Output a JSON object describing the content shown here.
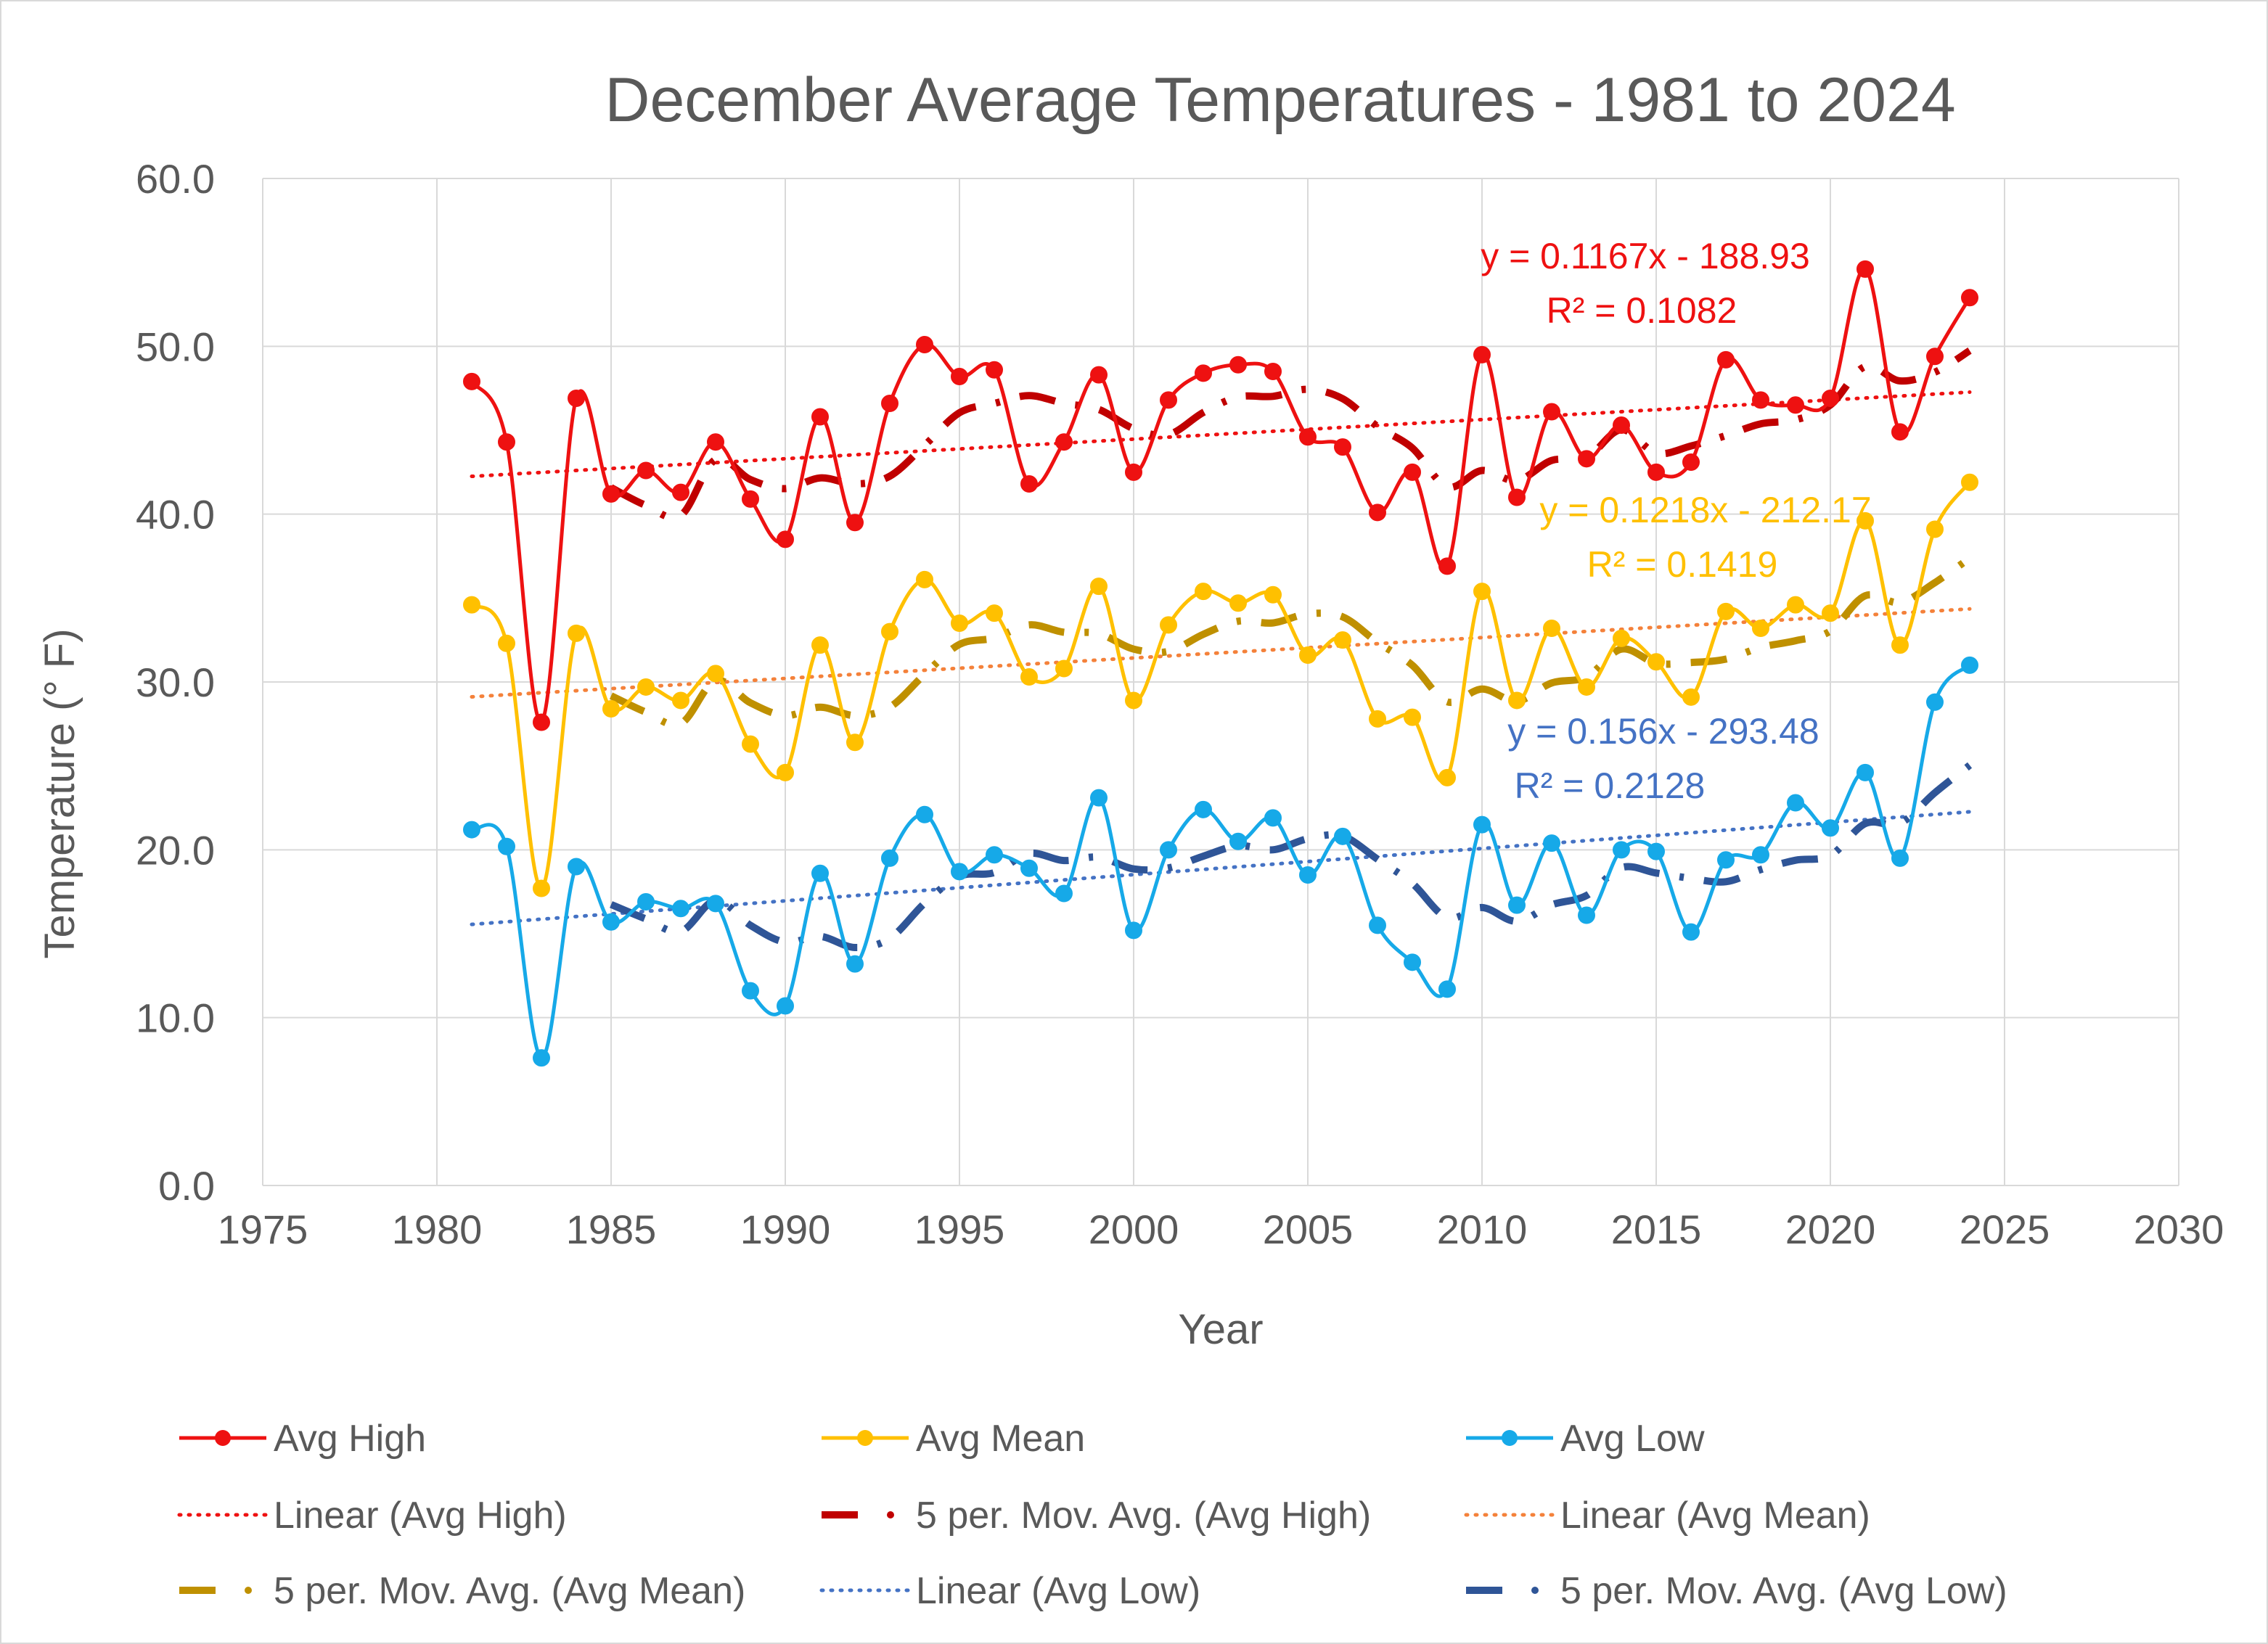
{
  "chart_data": {
    "type": "scatter",
    "title": "December Average Temperatures - 1981 to 2024",
    "xlabel": "Year",
    "ylabel": "Temperature (° F)",
    "xlim": [
      1975,
      2030
    ],
    "ylim": [
      0,
      60
    ],
    "x_ticks": [
      "1975",
      "1980",
      "1985",
      "1990",
      "1995",
      "2000",
      "2005",
      "2010",
      "2015",
      "2020",
      "2025",
      "2030"
    ],
    "y_ticks": [
      "0.0",
      "10.0",
      "20.0",
      "30.0",
      "40.0",
      "50.0",
      "60.0"
    ],
    "grid": true,
    "legend_position": "bottom",
    "x": [
      1981,
      1982,
      1983,
      1984,
      1985,
      1986,
      1987,
      1988,
      1989,
      1990,
      1991,
      1992,
      1993,
      1994,
      1995,
      1996,
      1997,
      1998,
      1999,
      2000,
      2001,
      2002,
      2003,
      2004,
      2005,
      2006,
      2007,
      2008,
      2009,
      2010,
      2011,
      2012,
      2013,
      2014,
      2015,
      2016,
      2017,
      2018,
      2019,
      2020,
      2021,
      2022,
      2023,
      2024
    ],
    "series": [
      {
        "name": "Avg High",
        "color": "#ee1111",
        "values": [
          47.9,
          44.3,
          27.6,
          46.9,
          41.2,
          42.6,
          41.3,
          44.3,
          40.9,
          38.5,
          45.8,
          39.5,
          46.6,
          50.1,
          48.2,
          48.6,
          41.8,
          44.3,
          48.3,
          42.5,
          46.8,
          48.4,
          48.9,
          48.5,
          44.6,
          44.0,
          40.1,
          42.5,
          36.9,
          49.5,
          41.0,
          46.1,
          43.3,
          45.3,
          42.5,
          43.1,
          49.2,
          46.8,
          46.5,
          46.9,
          54.6,
          44.9,
          49.4,
          52.9
        ]
      },
      {
        "name": "Avg Mean",
        "color": "#ffc000",
        "values": [
          34.6,
          32.3,
          17.7,
          32.9,
          28.4,
          29.7,
          28.9,
          30.5,
          26.3,
          24.6,
          32.2,
          26.4,
          33.0,
          36.1,
          33.5,
          34.1,
          30.3,
          30.8,
          35.7,
          28.9,
          33.4,
          35.4,
          34.7,
          35.2,
          31.6,
          32.5,
          27.8,
          27.9,
          24.3,
          35.4,
          28.9,
          33.2,
          29.7,
          32.6,
          31.2,
          29.1,
          34.2,
          33.2,
          34.6,
          34.1,
          39.6,
          32.2,
          39.1,
          41.9
        ]
      },
      {
        "name": "Avg Low",
        "color": "#16a9e8",
        "values": [
          21.2,
          20.2,
          7.6,
          19.0,
          15.7,
          16.9,
          16.5,
          16.8,
          11.6,
          10.7,
          18.6,
          13.2,
          19.5,
          22.1,
          18.7,
          19.7,
          18.9,
          17.4,
          23.1,
          15.2,
          20.0,
          22.4,
          20.5,
          21.9,
          18.5,
          20.8,
          15.5,
          13.3,
          11.7,
          21.5,
          16.7,
          20.4,
          16.1,
          20.0,
          19.9,
          15.1,
          19.4,
          19.7,
          22.8,
          21.3,
          24.6,
          19.5,
          28.8,
          31.0
        ]
      }
    ],
    "moving_averages": [
      {
        "name": "5 per. Mov. Avg. (Avg High)",
        "period": 5,
        "color": "#c00000"
      },
      {
        "name": "5 per. Mov. Avg. (Avg Mean)",
        "period": 5,
        "color": "#bf9000"
      },
      {
        "name": "5 per. Mov. Avg. (Avg Low)",
        "period": 5,
        "color": "#2f5597"
      }
    ],
    "trendlines": [
      {
        "name": "Linear (Avg High)",
        "slope": 0.1167,
        "intercept": -188.93,
        "equation": "y = 0.1167x - 188.93",
        "r2": "R² = 0.1082",
        "color": "#ee1111",
        "label_color": "#ee1111"
      },
      {
        "name": "Linear (Avg Mean)",
        "slope": 0.1218,
        "intercept": -212.17,
        "equation": "y = 0.1218x - 212.17",
        "r2": "R² = 0.1419",
        "color": "#f4813a",
        "label_color": "#ffc000"
      },
      {
        "name": "Linear (Avg Low)",
        "slope": 0.156,
        "intercept": -293.48,
        "equation": "y = 0.156x - 293.48",
        "r2": "R² = 0.2128",
        "color": "#4472c4",
        "label_color": "#4472c4"
      }
    ],
    "legend": [
      [
        "Avg High",
        "Avg Mean",
        "Avg Low"
      ],
      [
        "Linear (Avg High)",
        "5 per. Mov. Avg. (Avg High)",
        "Linear (Avg Mean)"
      ],
      [
        "5 per. Mov. Avg. (Avg Mean)",
        "Linear (Avg Low)",
        "5 per. Mov. Avg. (Avg Low)"
      ]
    ]
  }
}
